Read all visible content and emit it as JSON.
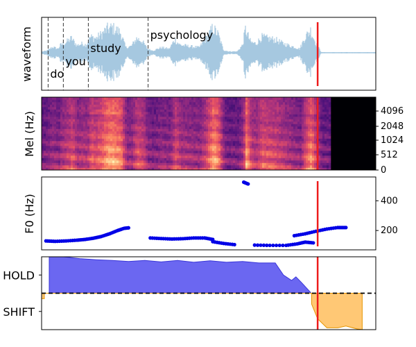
{
  "colors": {
    "waveform": "#a6c8e0",
    "cursor": "#ee1c1c",
    "f0_points": "#0000e6",
    "hold_fill": "#5b57f0",
    "hold_edge": "#3a36d8",
    "shift_fill": "#ffc266",
    "shift_edge": "#e69500"
  },
  "chart_data": [
    {
      "type": "line",
      "ylabel": "waveform",
      "x_range": [
        0,
        6.15
      ],
      "cursor_x": 5.08,
      "words": [
        {
          "text": "do",
          "start": 0.12
        },
        {
          "text": "you",
          "start": 0.4
        },
        {
          "text": "study",
          "start": 0.86
        },
        {
          "text": "psychology",
          "start": 1.96
        }
      ],
      "envelope": {
        "t": [
          0,
          0.1,
          0.2,
          0.3,
          0.35,
          0.45,
          0.55,
          0.65,
          0.75,
          0.82,
          0.9,
          1.0,
          1.1,
          1.2,
          1.3,
          1.45,
          1.55,
          1.65,
          1.75,
          1.85,
          1.95,
          2.05,
          2.2,
          2.35,
          2.45,
          2.55,
          2.7,
          2.9,
          3.05,
          3.15,
          3.25,
          3.35,
          3.45,
          3.6,
          3.7,
          3.75,
          3.85,
          3.95,
          4.05,
          4.15,
          4.3,
          4.45,
          4.6,
          4.75,
          4.85,
          4.95,
          5.05,
          5.15,
          6.15
        ],
        "amp": [
          0.04,
          0.08,
          0.22,
          0.15,
          0.3,
          0.4,
          0.55,
          0.28,
          0.35,
          0.3,
          0.6,
          0.55,
          0.7,
          0.9,
          0.95,
          0.78,
          0.2,
          0.25,
          0.55,
          0.45,
          0.15,
          0.08,
          0.2,
          0.15,
          0.5,
          0.3,
          0.25,
          0.2,
          0.6,
          0.95,
          0.7,
          0.1,
          0.05,
          0.05,
          0.3,
          0.9,
          0.4,
          0.35,
          0.6,
          0.55,
          0.5,
          0.35,
          0.25,
          0.15,
          0.6,
          0.85,
          0.35,
          0.02,
          0.02
        ]
      }
    },
    {
      "type": "heatmap",
      "ylabel": "Mel (Hz)",
      "x_range": [
        0,
        6.15
      ],
      "cursor_x": 5.08,
      "yticks": [
        "0",
        "512",
        "1024",
        "2048",
        "4096"
      ],
      "colormap": "magma",
      "speech_end_x": 5.3
    },
    {
      "type": "scatter",
      "ylabel": "F0 (Hz)",
      "x_range": [
        0,
        6.15
      ],
      "ylim": [
        70,
        560
      ],
      "yticks": [
        200,
        400
      ],
      "cursor_x": 5.08,
      "segments": [
        {
          "x": [
            0.08,
            0.25,
            0.45,
            0.65,
            0.8,
            0.95,
            1.1,
            1.25,
            1.4,
            1.52,
            1.6
          ],
          "y": [
            130,
            127,
            130,
            135,
            140,
            148,
            160,
            178,
            200,
            215,
            218
          ]
        },
        {
          "x": [
            2.0,
            2.2,
            2.4,
            2.6,
            2.8,
            3.0,
            3.15
          ],
          "y": [
            150,
            146,
            143,
            145,
            150,
            150,
            140
          ]
        },
        {
          "x": [
            3.15,
            3.35,
            3.55
          ],
          "y": [
            125,
            113,
            105
          ]
        },
        {
          "x": [
            3.72,
            3.8
          ],
          "y": [
            525,
            513
          ]
        },
        {
          "x": [
            3.92,
            4.2,
            4.5,
            4.7,
            4.85,
            5.0
          ],
          "y": [
            102,
            100,
            100,
            110,
            122,
            117
          ]
        },
        {
          "x": [
            4.65,
            4.85,
            5.05,
            5.25,
            5.45,
            5.6
          ],
          "y": [
            165,
            178,
            195,
            210,
            220,
            220
          ]
        }
      ]
    },
    {
      "type": "area",
      "yticks": [
        "HOLD",
        "SHIFT"
      ],
      "ylim": [
        -1.0,
        1.0
      ],
      "threshold": 0,
      "x_range": [
        0,
        6.15
      ],
      "cursor_x": 5.08,
      "hold": {
        "x": [
          0.14,
          0.14,
          0.4,
          0.7,
          1.0,
          1.3,
          1.6,
          1.9,
          2.2,
          2.5,
          2.8,
          3.1,
          3.4,
          3.7,
          4.0,
          4.3,
          4.45,
          4.6,
          4.68,
          4.78,
          4.95,
          4.95
        ],
        "y": [
          0,
          1.0,
          1.0,
          0.95,
          0.92,
          0.9,
          0.87,
          0.9,
          0.86,
          0.9,
          0.85,
          0.89,
          0.85,
          0.87,
          0.83,
          0.83,
          0.5,
          0.35,
          0.45,
          0.3,
          0.02,
          0
        ]
      },
      "shift": {
        "x": [
          0,
          0,
          0.05,
          0.05,
          4.97,
          4.97,
          5.08,
          5.25,
          5.45,
          5.6,
          5.8,
          5.9,
          5.9
        ],
        "y": [
          0,
          -0.15,
          -0.15,
          0,
          0,
          -0.3,
          -0.7,
          -0.95,
          -0.95,
          -0.9,
          -0.98,
          -1.0,
          0
        ]
      }
    }
  ]
}
